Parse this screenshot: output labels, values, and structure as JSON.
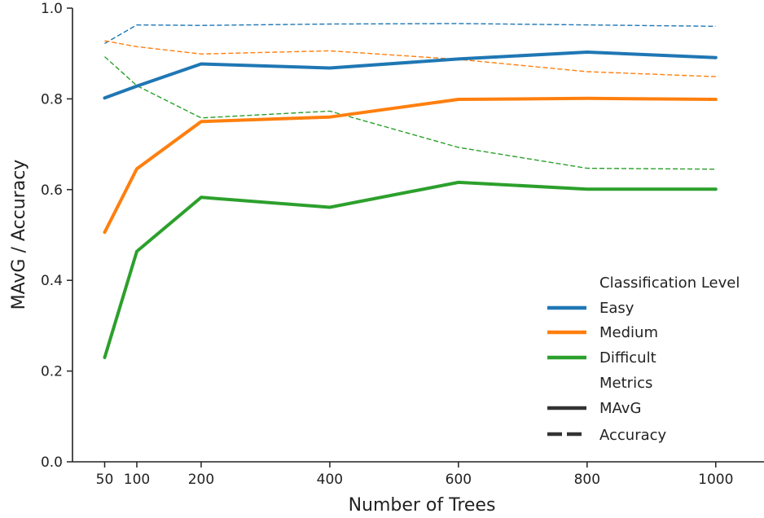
{
  "chart_data": {
    "type": "line",
    "xlabel": "Number of Trees",
    "ylabel": "MAvG / Accuracy",
    "x": [
      50,
      100,
      200,
      400,
      600,
      800,
      1000
    ],
    "xticks": [
      "50",
      "100",
      "200",
      "400",
      "600",
      "800",
      "1000"
    ],
    "yticks": [
      "0.0",
      "0.2",
      "0.4",
      "0.6",
      "0.8",
      "1.0"
    ],
    "xlim": [
      0,
      1075
    ],
    "ylim": [
      0.0,
      1.0
    ],
    "grid": false,
    "legend_position": "lower-right",
    "legend": {
      "hue_title": "Classification Level",
      "hue_entries": [
        {
          "name": "Easy",
          "color": "#1f77b4"
        },
        {
          "name": "Medium",
          "color": "#ff7f0e"
        },
        {
          "name": "Difficult",
          "color": "#2ca02c"
        }
      ],
      "style_title": "Metrics",
      "style_entries": [
        {
          "name": "MAvG",
          "style": "solid"
        },
        {
          "name": "Accuracy",
          "style": "dashed"
        }
      ]
    },
    "series": [
      {
        "level": "Easy",
        "metric": "MAvG",
        "color": "#1f77b4",
        "style": "solid",
        "values": [
          0.802,
          0.828,
          0.877,
          0.868,
          0.888,
          0.903,
          0.891
        ]
      },
      {
        "level": "Medium",
        "metric": "MAvG",
        "color": "#ff7f0e",
        "style": "solid",
        "values": [
          0.506,
          0.646,
          0.75,
          0.76,
          0.799,
          0.801,
          0.799
        ]
      },
      {
        "level": "Difficult",
        "metric": "MAvG",
        "color": "#2ca02c",
        "style": "solid",
        "values": [
          0.23,
          0.464,
          0.583,
          0.561,
          0.616,
          0.601,
          0.601
        ]
      },
      {
        "level": "Easy",
        "metric": "Accuracy",
        "color": "#1f77b4",
        "style": "dashed",
        "values": [
          0.922,
          0.963,
          0.962,
          0.965,
          0.966,
          0.963,
          0.96
        ]
      },
      {
        "level": "Medium",
        "metric": "Accuracy",
        "color": "#ff7f0e",
        "style": "dashed",
        "values": [
          0.928,
          0.915,
          0.899,
          0.906,
          0.887,
          0.86,
          0.849
        ]
      },
      {
        "level": "Difficult",
        "metric": "Accuracy",
        "color": "#2ca02c",
        "style": "dashed",
        "values": [
          0.893,
          0.829,
          0.758,
          0.773,
          0.693,
          0.647,
          0.645
        ]
      }
    ]
  }
}
